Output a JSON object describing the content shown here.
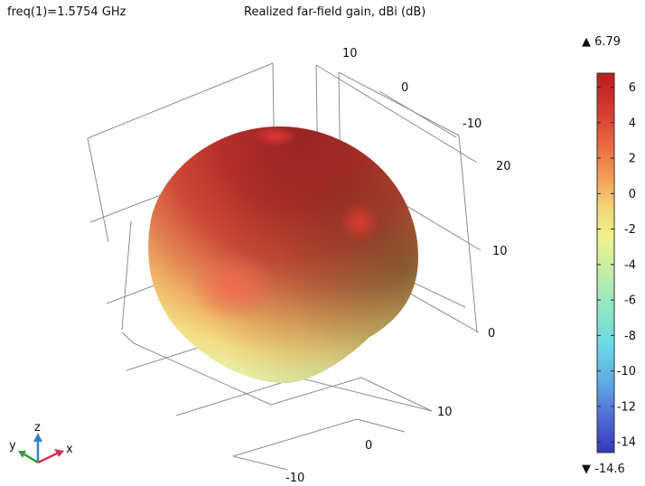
{
  "header": {
    "param": "freq(1)=1.5754 GHz",
    "title": "Realized far-field gain, dBi (dB)"
  },
  "colorbar": {
    "max_label": "▲ 6.79",
    "min_label": "▼ -14.6",
    "max": 6.79,
    "min": -14.6,
    "ticks": [
      "6",
      "4",
      "2",
      "0",
      "-2",
      "-4",
      "-6",
      "-8",
      "-10",
      "-12",
      "-14"
    ],
    "tick_values": [
      6,
      4,
      2,
      0,
      -2,
      -4,
      -6,
      -8,
      -10,
      -12,
      -14
    ],
    "colormap": [
      "#ba1e1e",
      "#e04b3b",
      "#f08a50",
      "#f2c76a",
      "#f3f08a",
      "#c5eea3",
      "#8fe6c4",
      "#69d8e6",
      "#5fa6e2",
      "#4f6ad6",
      "#3838bb"
    ]
  },
  "axes": {
    "x_ticks": [
      "-10",
      "0",
      "10"
    ],
    "y_ticks": [
      "10",
      "0",
      "-10"
    ],
    "z_ticks": [
      "0",
      "10",
      "20"
    ]
  },
  "triad": {
    "x": "x",
    "y": "y",
    "z": "z"
  },
  "chart_data": {
    "type": "surface-3d",
    "quantity": "Realized far-field gain",
    "unit": "dBi (dB)",
    "color_range": [
      -14.6,
      6.79
    ],
    "x_tick_values": [
      -10,
      0,
      10
    ],
    "y_tick_values": [
      10,
      0,
      -10
    ],
    "z_tick_values": [
      0,
      10,
      20
    ],
    "grid": true
  }
}
